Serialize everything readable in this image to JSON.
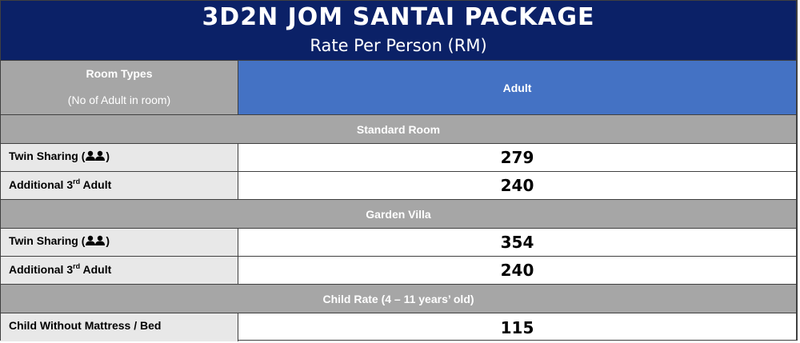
{
  "header": {
    "title": "3D2N JOM SANTAI PACKAGE",
    "subtitle": "Rate Per Person (RM)"
  },
  "table_header": {
    "room_types_label": "Room Types",
    "room_types_sub": "(No of Adult in room)",
    "adult_label": "Adult"
  },
  "sections": {
    "standard": {
      "title": "Standard Room",
      "twin_label": "Twin Sharing (",
      "twin_close": ")",
      "twin_icon": "two-persons-icon",
      "twin_rate": "279",
      "additional_label_a": "Additional 3",
      "additional_sup": "rd",
      "additional_label_b": " Adult",
      "additional_rate": "240"
    },
    "garden": {
      "title": "Garden Villa",
      "twin_label": "Twin Sharing (",
      "twin_close": ")",
      "twin_icon": "two-persons-icon",
      "twin_rate": "354",
      "additional_label_a": "Additional 3",
      "additional_sup": "rd",
      "additional_label_b": " Adult",
      "additional_rate": "240"
    },
    "child": {
      "title": "Child Rate (4 – 11 years’ old)",
      "row_label": "Child Without Mattress / Bed",
      "row_rate": "115"
    }
  },
  "colors": {
    "header_bg": "#0b2167",
    "adult_header_bg": "#4472c4",
    "section_bg": "#a6a6a6",
    "label_bg": "#e8e8e8"
  }
}
